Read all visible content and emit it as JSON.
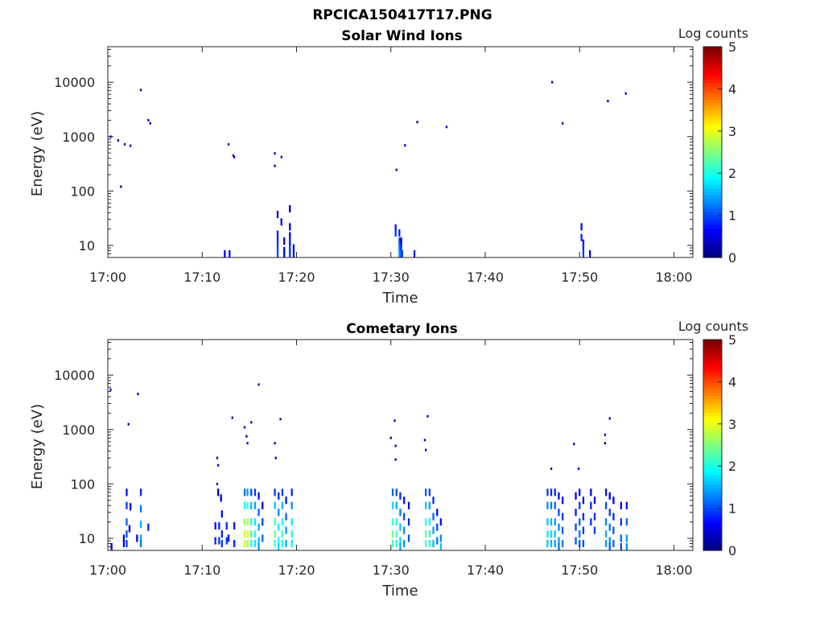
{
  "figure": {
    "main_title": "RPCICA150417T17.PNG"
  },
  "colors": {
    "axis": "#262626",
    "background": "#ffffff"
  },
  "chart_data": [
    {
      "type": "heatmap",
      "title": "Solar Wind Ions",
      "xlabel": "Time",
      "ylabel": "Energy (eV)",
      "y_scale": "log",
      "x_range": [
        "17:00",
        "18:02"
      ],
      "ylim": [
        6,
        45000
      ],
      "x_ticks": [
        "17:00",
        "17:10",
        "17:20",
        "17:30",
        "17:40",
        "17:50",
        "18:00"
      ],
      "y_ticks": [
        10,
        100,
        1000,
        10000
      ],
      "y_tick_labels": [
        "10",
        "100",
        "1000",
        "10000"
      ],
      "colorbar": {
        "label": "Log counts",
        "range": [
          0,
          5
        ],
        "ticks": [
          "0",
          "1",
          "2",
          "3",
          "4",
          "5"
        ],
        "colormap": "jet"
      },
      "cell_width_minutes": 0.2,
      "cells": [
        [
          0.2,
          1000,
          0.3
        ],
        [
          1.0,
          850,
          0.3
        ],
        [
          1.7,
          720,
          0.3
        ],
        [
          2.3,
          680,
          0.3
        ],
        [
          1.3,
          120,
          0.3
        ],
        [
          3.4,
          7200,
          0.3
        ],
        [
          4.2,
          2000,
          0.3
        ],
        [
          4.4,
          1750,
          0.3
        ],
        [
          12.7,
          720,
          0.3
        ],
        [
          13.2,
          450,
          0.3
        ],
        [
          13.3,
          420,
          0.3
        ],
        [
          17.6,
          490,
          0.3
        ],
        [
          17.6,
          290,
          0.3
        ],
        [
          18.3,
          420,
          0.3
        ],
        [
          30.5,
          245,
          0.3
        ],
        [
          31.4,
          690,
          0.3
        ],
        [
          32.7,
          1850,
          0.3
        ],
        [
          35.8,
          1500,
          0.3
        ],
        [
          47.0,
          10000,
          0.3
        ],
        [
          48.1,
          1750,
          0.3
        ],
        [
          52.9,
          4500,
          0.3
        ],
        [
          54.8,
          6200,
          0.3
        ],
        [
          12.3,
          7,
          0.6
        ],
        [
          12.8,
          7,
          0.7
        ],
        [
          17.9,
          37,
          0.4
        ],
        [
          18.3,
          27,
          0.6
        ],
        [
          17.9,
          16,
          0.7
        ],
        [
          17.9,
          12,
          0.8
        ],
        [
          17.9,
          9,
          0.9
        ],
        [
          17.9,
          7,
          1.0
        ],
        [
          18.6,
          12,
          0.5
        ],
        [
          18.6,
          8,
          0.6
        ],
        [
          18.6,
          7,
          0.7
        ],
        [
          19.2,
          47,
          0.4
        ],
        [
          19.2,
          22,
          0.5
        ],
        [
          19.2,
          15,
          0.6
        ],
        [
          19.2,
          11,
          0.7
        ],
        [
          19.2,
          8,
          0.8
        ],
        [
          19.2,
          7,
          0.9
        ],
        [
          19.6,
          9,
          0.6
        ],
        [
          19.6,
          7,
          0.7
        ],
        [
          30.4,
          21,
          0.7
        ],
        [
          30.4,
          17,
          0.9
        ],
        [
          30.8,
          17,
          0.8
        ],
        [
          30.8,
          12,
          1.0
        ],
        [
          30.8,
          9,
          1.2
        ],
        [
          30.8,
          7,
          1.4
        ],
        [
          31.0,
          12,
          0.6
        ],
        [
          31.0,
          9,
          0.8
        ],
        [
          31.0,
          7,
          1.0
        ],
        [
          31.1,
          7,
          0.9
        ],
        [
          32.4,
          7,
          0.8
        ],
        [
          50.1,
          22,
          0.7
        ],
        [
          50.1,
          14,
          0.8
        ],
        [
          50.3,
          11,
          0.7
        ],
        [
          50.3,
          9,
          0.8
        ],
        [
          50.3,
          7,
          0.9
        ],
        [
          51.0,
          7,
          0.7
        ]
      ]
    },
    {
      "type": "heatmap",
      "title": "Cometary Ions",
      "xlabel": "Time",
      "ylabel": "Energy (eV)",
      "y_scale": "log",
      "x_range": [
        "17:00",
        "18:02"
      ],
      "ylim": [
        6,
        45000
      ],
      "x_ticks": [
        "17:00",
        "17:10",
        "17:20",
        "17:30",
        "17:40",
        "17:50",
        "18:00"
      ],
      "y_ticks": [
        10,
        100,
        1000,
        10000
      ],
      "y_tick_labels": [
        "10",
        "100",
        "1000",
        "10000"
      ],
      "colorbar": {
        "label": "Log counts",
        "range": [
          0,
          5
        ],
        "ticks": [
          "0",
          "1",
          "2",
          "3",
          "4",
          "5"
        ],
        "colormap": "jet"
      },
      "cell_width_minutes": 0.2,
      "cells": [
        [
          0.2,
          5400,
          0.3
        ],
        [
          3.1,
          4500,
          0.3
        ],
        [
          2.1,
          1250,
          0.3
        ],
        [
          13.1,
          1650,
          0.3
        ],
        [
          15.9,
          6700,
          0.3
        ],
        [
          14.4,
          1100,
          0.3
        ],
        [
          14.6,
          750,
          0.3
        ],
        [
          14.7,
          560,
          0.3
        ],
        [
          15.1,
          1350,
          0.3
        ],
        [
          18.2,
          1550,
          0.3
        ],
        [
          11.5,
          300,
          0.3
        ],
        [
          11.6,
          220,
          0.3
        ],
        [
          11.5,
          100,
          0.3
        ],
        [
          11.6,
          70,
          0.3
        ],
        [
          17.6,
          560,
          0.3
        ],
        [
          17.7,
          300,
          0.3
        ],
        [
          29.9,
          700,
          0.3
        ],
        [
          30.3,
          1450,
          0.3
        ],
        [
          30.4,
          500,
          0.3
        ],
        [
          30.4,
          280,
          0.3
        ],
        [
          33.8,
          1750,
          0.3
        ],
        [
          33.5,
          640,
          0.3
        ],
        [
          33.6,
          420,
          0.3
        ],
        [
          46.9,
          190,
          0.3
        ],
        [
          49.3,
          540,
          0.3
        ],
        [
          49.8,
          190,
          0.3
        ],
        [
          52.6,
          800,
          0.3
        ],
        [
          52.6,
          560,
          0.3
        ],
        [
          53.1,
          1600,
          0.3
        ],
        [
          0.3,
          7,
          0.5
        ],
        [
          1.6,
          10,
          0.5
        ],
        [
          1.6,
          8,
          0.5
        ],
        [
          1.9,
          70,
          0.7
        ],
        [
          1.9,
          40,
          0.9
        ],
        [
          1.9,
          20,
          1.1
        ],
        [
          1.9,
          12,
          1.0
        ],
        [
          1.9,
          8,
          0.9
        ],
        [
          2.2,
          15,
          0.5
        ],
        [
          2.3,
          38,
          0.5
        ],
        [
          3.0,
          10,
          0.6
        ],
        [
          3.4,
          70,
          0.8
        ],
        [
          3.4,
          35,
          1.2
        ],
        [
          3.4,
          18,
          1.5
        ],
        [
          3.4,
          10,
          1.4
        ],
        [
          3.4,
          8,
          1.2
        ],
        [
          4.2,
          16,
          0.8
        ],
        [
          11.3,
          17,
          0.7
        ],
        [
          11.3,
          9,
          0.8
        ],
        [
          11.7,
          17,
          0.8
        ],
        [
          11.7,
          9,
          0.9
        ],
        [
          11.9,
          55,
          0.5
        ],
        [
          12.0,
          28,
          0.7
        ],
        [
          12.0,
          12,
          0.8
        ],
        [
          12.0,
          8,
          0.9
        ],
        [
          12.5,
          17,
          0.8
        ],
        [
          12.5,
          9,
          0.9
        ],
        [
          12.7,
          10,
          0.7
        ],
        [
          13.3,
          17,
          0.7
        ],
        [
          13.3,
          8,
          0.8
        ],
        [
          14.4,
          70,
          1.2
        ],
        [
          14.4,
          40,
          1.9
        ],
        [
          14.4,
          20,
          2.6
        ],
        [
          14.4,
          12,
          2.9
        ],
        [
          14.4,
          8,
          2.9
        ],
        [
          14.7,
          70,
          1.4
        ],
        [
          14.7,
          40,
          2.2
        ],
        [
          14.7,
          20,
          2.8
        ],
        [
          14.7,
          12,
          3.0
        ],
        [
          14.7,
          8,
          2.7
        ],
        [
          15.1,
          70,
          1.0
        ],
        [
          15.1,
          40,
          1.6
        ],
        [
          15.1,
          20,
          2.1
        ],
        [
          15.1,
          12,
          2.3
        ],
        [
          15.1,
          8,
          2.1
        ],
        [
          15.5,
          70,
          0.9
        ],
        [
          15.5,
          40,
          1.4
        ],
        [
          15.5,
          20,
          1.8
        ],
        [
          15.5,
          12,
          2.0
        ],
        [
          15.5,
          8,
          1.8
        ],
        [
          15.9,
          60,
          0.7
        ],
        [
          15.9,
          30,
          1.1
        ],
        [
          15.9,
          16,
          1.5
        ],
        [
          15.9,
          9,
          1.6
        ],
        [
          15.9,
          7,
          1.4
        ],
        [
          16.3,
          40,
          0.6
        ],
        [
          16.3,
          20,
          0.9
        ],
        [
          16.3,
          10,
          1.1
        ],
        [
          17.6,
          70,
          0.9
        ],
        [
          17.6,
          40,
          1.6
        ],
        [
          17.6,
          20,
          2.2
        ],
        [
          17.6,
          12,
          2.4
        ],
        [
          17.6,
          8,
          2.2
        ],
        [
          18.0,
          60,
          0.8
        ],
        [
          18.0,
          30,
          1.3
        ],
        [
          18.0,
          16,
          1.8
        ],
        [
          18.0,
          9,
          1.9
        ],
        [
          18.0,
          7,
          1.7
        ],
        [
          18.4,
          70,
          0.9
        ],
        [
          18.4,
          40,
          1.5
        ],
        [
          18.4,
          20,
          2.0
        ],
        [
          18.4,
          12,
          2.2
        ],
        [
          18.4,
          8,
          1.9
        ],
        [
          18.8,
          50,
          0.7
        ],
        [
          18.8,
          25,
          1.1
        ],
        [
          18.8,
          14,
          1.4
        ],
        [
          18.8,
          8,
          1.5
        ],
        [
          19.4,
          70,
          0.8
        ],
        [
          19.4,
          40,
          1.3
        ],
        [
          19.4,
          20,
          1.8
        ],
        [
          19.4,
          12,
          2.0
        ],
        [
          19.4,
          8,
          1.8
        ],
        [
          30.1,
          70,
          1.1
        ],
        [
          30.1,
          40,
          1.7
        ],
        [
          30.1,
          20,
          2.2
        ],
        [
          30.1,
          12,
          2.5
        ],
        [
          30.1,
          8,
          2.3
        ],
        [
          30.5,
          70,
          1.0
        ],
        [
          30.5,
          40,
          1.5
        ],
        [
          30.5,
          20,
          2.0
        ],
        [
          30.5,
          12,
          2.2
        ],
        [
          30.5,
          8,
          2.0
        ],
        [
          30.9,
          60,
          0.8
        ],
        [
          30.9,
          30,
          1.2
        ],
        [
          30.9,
          16,
          1.6
        ],
        [
          30.9,
          9,
          1.7
        ],
        [
          30.9,
          7,
          1.5
        ],
        [
          31.3,
          50,
          0.7
        ],
        [
          31.3,
          25,
          1.0
        ],
        [
          31.3,
          14,
          1.3
        ],
        [
          31.3,
          8,
          1.4
        ],
        [
          31.8,
          40,
          0.6
        ],
        [
          31.8,
          20,
          0.8
        ],
        [
          31.8,
          10,
          1.0
        ],
        [
          33.6,
          70,
          1.0
        ],
        [
          33.6,
          40,
          1.6
        ],
        [
          33.6,
          20,
          2.1
        ],
        [
          33.6,
          12,
          2.4
        ],
        [
          33.6,
          8,
          2.2
        ],
        [
          34.0,
          70,
          0.9
        ],
        [
          34.0,
          40,
          1.4
        ],
        [
          34.0,
          20,
          1.9
        ],
        [
          34.0,
          12,
          2.1
        ],
        [
          34.0,
          8,
          2.0
        ],
        [
          34.4,
          50,
          0.8
        ],
        [
          34.4,
          25,
          1.1
        ],
        [
          34.4,
          14,
          1.4
        ],
        [
          34.4,
          8,
          1.5
        ],
        [
          34.8,
          30,
          0.7
        ],
        [
          34.8,
          16,
          1.0
        ],
        [
          34.8,
          9,
          1.2
        ],
        [
          35.2,
          20,
          0.7
        ],
        [
          35.2,
          10,
          1.3
        ],
        [
          35.2,
          7,
          1.6
        ],
        [
          46.5,
          70,
          0.9
        ],
        [
          46.5,
          40,
          1.3
        ],
        [
          46.5,
          20,
          1.6
        ],
        [
          46.5,
          12,
          1.8
        ],
        [
          46.5,
          8,
          1.6
        ],
        [
          46.9,
          70,
          0.8
        ],
        [
          46.9,
          40,
          1.2
        ],
        [
          46.9,
          20,
          1.5
        ],
        [
          46.9,
          12,
          1.7
        ],
        [
          46.9,
          8,
          1.5
        ],
        [
          47.3,
          70,
          0.8
        ],
        [
          47.3,
          40,
          1.1
        ],
        [
          47.3,
          20,
          1.4
        ],
        [
          47.3,
          12,
          1.6
        ],
        [
          47.3,
          8,
          1.4
        ],
        [
          47.7,
          60,
          0.7
        ],
        [
          47.7,
          30,
          1.0
        ],
        [
          47.7,
          16,
          1.3
        ],
        [
          47.7,
          9,
          1.4
        ],
        [
          47.7,
          7,
          1.2
        ],
        [
          48.1,
          50,
          0.6
        ],
        [
          48.1,
          25,
          0.9
        ],
        [
          48.1,
          14,
          1.1
        ],
        [
          48.1,
          8,
          1.2
        ],
        [
          49.5,
          60,
          0.6
        ],
        [
          49.5,
          30,
          0.8
        ],
        [
          49.5,
          16,
          1.0
        ],
        [
          49.5,
          9,
          1.1
        ],
        [
          49.9,
          70,
          0.7
        ],
        [
          49.9,
          40,
          0.9
        ],
        [
          49.9,
          20,
          1.1
        ],
        [
          49.9,
          12,
          1.2
        ],
        [
          49.9,
          8,
          1.1
        ],
        [
          50.3,
          50,
          0.6
        ],
        [
          50.3,
          25,
          0.8
        ],
        [
          50.3,
          14,
          0.9
        ],
        [
          50.3,
          8,
          1.0
        ],
        [
          51.1,
          70,
          0.6
        ],
        [
          51.1,
          40,
          0.8
        ],
        [
          51.1,
          20,
          0.9
        ],
        [
          51.5,
          50,
          0.6
        ],
        [
          51.5,
          25,
          0.8
        ],
        [
          51.5,
          14,
          0.9
        ],
        [
          52.7,
          70,
          0.7
        ],
        [
          52.7,
          40,
          1.0
        ],
        [
          52.7,
          20,
          1.3
        ],
        [
          52.7,
          12,
          1.5
        ],
        [
          52.7,
          8,
          1.4
        ],
        [
          53.1,
          60,
          0.6
        ],
        [
          53.1,
          30,
          0.9
        ],
        [
          53.1,
          16,
          1.2
        ],
        [
          53.1,
          9,
          1.3
        ],
        [
          53.1,
          7,
          1.1
        ],
        [
          53.5,
          50,
          0.6
        ],
        [
          53.5,
          25,
          0.8
        ],
        [
          53.5,
          14,
          1.0
        ],
        [
          53.5,
          8,
          1.1
        ],
        [
          54.3,
          40,
          0.6
        ],
        [
          54.3,
          20,
          0.9
        ],
        [
          54.3,
          10,
          1.1
        ],
        [
          54.3,
          7,
          1.0
        ],
        [
          54.9,
          40,
          0.7
        ],
        [
          54.9,
          20,
          1.1
        ],
        [
          54.9,
          10,
          1.4
        ],
        [
          54.9,
          7,
          1.3
        ]
      ]
    }
  ]
}
